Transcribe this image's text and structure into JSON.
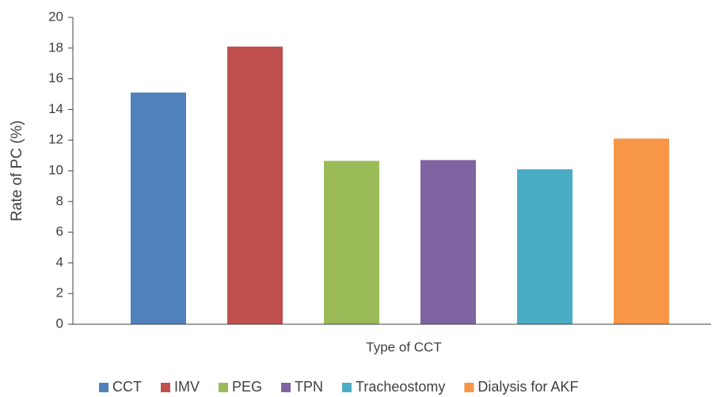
{
  "chart_data": {
    "type": "bar",
    "x_label": "Type of CCT",
    "y_label": "Rate of PC (%)",
    "categories": [
      null
    ],
    "series": [
      {
        "name": "CCT",
        "color": "#4f81bd",
        "values": [
          15.1
        ]
      },
      {
        "name": "IMV",
        "color": "#c0504d",
        "values": [
          18.1
        ]
      },
      {
        "name": "PEG",
        "color": "#9bbb59",
        "values": [
          10.65
        ]
      },
      {
        "name": "TPN",
        "color": "#8064a2",
        "values": [
          10.7
        ]
      },
      {
        "name": "Tracheostomy",
        "color": "#4bacc6",
        "values": [
          10.1
        ]
      },
      {
        "name": "Dialysis for AKF",
        "color": "#f79646",
        "values": [
          12.1
        ]
      }
    ],
    "ylim": [
      0,
      20
    ],
    "yticks": [
      0,
      2,
      4,
      6,
      8,
      10,
      12,
      14,
      16,
      18,
      20
    ],
    "grid": false,
    "legend": "bottom"
  }
}
